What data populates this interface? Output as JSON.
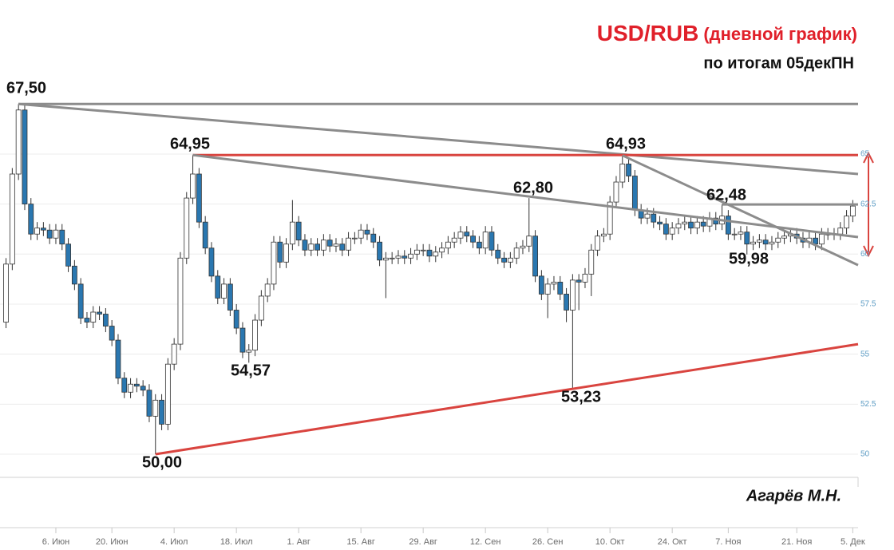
{
  "chart_data": {
    "type": "candlestick",
    "title": "USD/RUB",
    "title_note": "(дневной график)",
    "subtitle": "по итогам 05декПН",
    "author": "Агарёв М.Н.",
    "up_color": "#ffffff",
    "down_color": "#2a77b0",
    "xlim": [
      -8.97,
      128.85
    ],
    "ylim": [
      48.843,
      72.696
    ],
    "yticks": [
      50,
      52.5,
      55,
      57.5,
      60,
      62.5,
      65
    ],
    "xticks": [
      {
        "value": 0,
        "label": "6. Июн"
      },
      {
        "value": 9,
        "label": "20. Июн"
      },
      {
        "value": 19,
        "label": "4. Июл"
      },
      {
        "value": 29,
        "label": "18. Июл"
      },
      {
        "value": 39,
        "label": "1. Авг"
      },
      {
        "value": 49,
        "label": "15. Авг"
      },
      {
        "value": 59,
        "label": "29. Авг"
      },
      {
        "value": 69,
        "label": "12. Сен"
      },
      {
        "value": 79,
        "label": "26. Сен"
      },
      {
        "value": 89,
        "label": "10. Окт"
      },
      {
        "value": 99,
        "label": "24. Окт"
      },
      {
        "value": 108,
        "label": "7. Ноя"
      },
      {
        "value": 119,
        "label": "21. Ноя"
      },
      {
        "value": 128,
        "label": "5. Дек"
      }
    ],
    "grid": true,
    "x": [
      -8,
      -7,
      -6,
      -5,
      -4,
      -3,
      -2,
      -1,
      0,
      1,
      2,
      3,
      4,
      5,
      6,
      7,
      8,
      9,
      10,
      11,
      12,
      13,
      14,
      15,
      16,
      17,
      18,
      19,
      20,
      21,
      22,
      23,
      24,
      25,
      26,
      27,
      28,
      29,
      30,
      31,
      32,
      33,
      34,
      35,
      36,
      37,
      38,
      39,
      40,
      41,
      42,
      43,
      44,
      45,
      46,
      47,
      48,
      49,
      50,
      51,
      52,
      53,
      54,
      55,
      56,
      57,
      58,
      59,
      60,
      61,
      62,
      63,
      64,
      65,
      66,
      67,
      68,
      69,
      70,
      71,
      72,
      73,
      74,
      75,
      76,
      77,
      78,
      79,
      80,
      81,
      82,
      83,
      84,
      85,
      86,
      87,
      88,
      89,
      90,
      91,
      92,
      93,
      94,
      95,
      96,
      97,
      98,
      99,
      100,
      101,
      102,
      103,
      104,
      105,
      106,
      107,
      108,
      109,
      110,
      111,
      112,
      113,
      114,
      115,
      116,
      117,
      118,
      119,
      120,
      121,
      122,
      123,
      124,
      125,
      126,
      127,
      128
    ],
    "open": [
      56.6,
      59.5,
      64.0,
      67.2,
      62.5,
      61.0,
      61.3,
      61.2,
      60.8,
      61.2,
      60.5,
      59.4,
      58.5,
      56.8,
      56.6,
      57.1,
      57.0,
      56.4,
      55.7,
      53.8,
      53.1,
      53.5,
      53.4,
      53.2,
      51.9,
      52.7,
      51.5,
      54.5,
      55.5,
      59.8,
      62.8,
      64.0,
      61.6,
      60.3,
      58.9,
      57.8,
      58.5,
      57.2,
      56.3,
      55.1,
      55.2,
      56.7,
      57.9,
      58.5,
      60.6,
      59.6,
      60.5,
      61.6,
      60.7,
      60.2,
      60.5,
      60.2,
      60.7,
      60.4,
      60.5,
      60.2,
      60.8,
      60.8,
      61.2,
      61.0,
      60.6,
      59.7,
      59.8,
      59.8,
      59.9,
      59.8,
      60.0,
      60.2,
      60.2,
      59.9,
      60.1,
      60.3,
      60.6,
      60.8,
      61.1,
      60.9,
      60.6,
      60.3,
      61.1,
      60.2,
      59.8,
      59.6,
      59.8,
      60.3,
      60.4,
      60.9,
      58.9,
      58.0,
      58.5,
      58.6,
      58.0,
      57.2,
      58.7,
      58.6,
      59.0,
      60.2,
      60.9,
      61.0,
      62.6,
      63.6,
      64.5,
      63.9,
      62.2,
      61.8,
      62.0,
      61.6,
      61.5,
      61.0,
      61.3,
      61.5,
      61.6,
      61.3,
      61.6,
      61.4,
      61.8,
      61.5,
      61.9,
      61.0,
      61.0,
      61.1,
      60.5,
      60.6,
      60.7,
      60.5,
      60.6,
      60.8,
      60.9,
      61.0,
      60.8,
      60.6,
      60.8,
      60.5,
      61.0,
      61.0,
      61.0,
      61.3,
      61.9
    ],
    "high": [
      59.8,
      64.3,
      67.5,
      67.5,
      62.8,
      61.6,
      61.6,
      61.5,
      61.5,
      61.5,
      60.8,
      59.7,
      58.8,
      57.1,
      57.4,
      57.4,
      57.3,
      56.7,
      56.0,
      54.1,
      53.8,
      53.8,
      53.7,
      53.5,
      53.0,
      53.0,
      54.8,
      55.8,
      60.1,
      63.1,
      64.95,
      64.3,
      61.9,
      60.6,
      59.2,
      58.8,
      58.8,
      57.5,
      56.6,
      55.5,
      57.0,
      58.2,
      58.8,
      60.9,
      60.9,
      60.8,
      62.7,
      61.9,
      61.0,
      60.8,
      60.8,
      61.0,
      61.0,
      60.8,
      60.8,
      61.1,
      61.1,
      61.5,
      61.5,
      61.3,
      60.9,
      60.1,
      60.1,
      60.2,
      60.2,
      60.3,
      60.5,
      60.5,
      60.5,
      60.4,
      60.6,
      60.9,
      61.1,
      61.4,
      61.4,
      61.2,
      60.9,
      61.4,
      61.4,
      60.5,
      60.1,
      60.1,
      60.6,
      60.7,
      62.8,
      61.2,
      59.2,
      58.8,
      58.9,
      58.9,
      58.3,
      59.0,
      59.0,
      59.3,
      60.5,
      61.2,
      61.3,
      62.9,
      63.9,
      64.93,
      64.8,
      64.2,
      62.5,
      62.3,
      62.3,
      61.9,
      61.8,
      61.6,
      61.8,
      61.9,
      61.9,
      61.9,
      61.9,
      62.1,
      62.1,
      62.48,
      62.2,
      61.3,
      61.4,
      61.4,
      60.9,
      61.0,
      61.0,
      60.9,
      61.1,
      61.2,
      61.3,
      61.3,
      61.1,
      61.1,
      61.1,
      61.3,
      61.3,
      61.3,
      61.6,
      62.2,
      62.7
    ],
    "low": [
      56.3,
      59.2,
      63.7,
      62.2,
      60.7,
      60.7,
      60.9,
      60.5,
      60.5,
      60.2,
      59.1,
      58.2,
      56.5,
      56.3,
      56.3,
      56.7,
      56.1,
      55.4,
      53.5,
      52.8,
      52.8,
      53.1,
      52.9,
      51.6,
      50.0,
      51.2,
      51.2,
      54.2,
      55.2,
      59.5,
      62.5,
      61.3,
      60.0,
      58.6,
      57.5,
      57.5,
      56.9,
      56.0,
      54.8,
      54.57,
      54.9,
      56.4,
      57.6,
      58.2,
      59.3,
      59.3,
      60.2,
      60.4,
      59.9,
      59.9,
      59.9,
      59.9,
      60.1,
      60.1,
      59.9,
      59.9,
      60.5,
      60.5,
      60.7,
      60.3,
      59.4,
      57.8,
      59.5,
      59.5,
      59.5,
      59.5,
      59.7,
      59.9,
      59.6,
      59.6,
      59.8,
      60.0,
      60.3,
      60.5,
      60.6,
      60.3,
      60.0,
      60.0,
      59.9,
      59.5,
      59.3,
      59.3,
      59.5,
      60.0,
      60.1,
      58.6,
      57.7,
      56.8,
      58.2,
      57.7,
      56.6,
      53.23,
      57.2,
      58.3,
      57.9,
      59.9,
      60.6,
      60.7,
      62.3,
      63.3,
      63.6,
      61.9,
      61.5,
      61.5,
      61.3,
      61.2,
      60.7,
      60.7,
      61.0,
      61.2,
      61.0,
      61.0,
      61.1,
      61.1,
      61.2,
      61.2,
      60.7,
      60.7,
      60.7,
      59.98,
      60.2,
      60.3,
      60.2,
      60.2,
      60.3,
      60.5,
      60.6,
      60.5,
      60.3,
      60.3,
      60.2,
      60.2,
      60.7,
      60.7,
      60.7,
      61.0,
      61.6
    ],
    "close": [
      59.5,
      64.0,
      67.2,
      62.5,
      61.0,
      61.3,
      61.2,
      60.8,
      61.2,
      60.5,
      59.4,
      58.5,
      56.8,
      56.6,
      57.1,
      57.0,
      56.4,
      55.7,
      53.8,
      53.1,
      53.5,
      53.4,
      53.2,
      51.9,
      52.7,
      51.5,
      54.5,
      55.5,
      59.8,
      62.8,
      64.0,
      61.6,
      60.3,
      58.9,
      57.8,
      58.5,
      57.2,
      56.3,
      55.1,
      55.2,
      56.7,
      57.9,
      58.5,
      60.6,
      59.6,
      60.5,
      61.6,
      60.7,
      60.2,
      60.5,
      60.2,
      60.7,
      60.4,
      60.5,
      60.2,
      60.8,
      60.8,
      61.2,
      61.0,
      60.6,
      59.7,
      59.8,
      59.8,
      59.9,
      59.8,
      60.0,
      60.2,
      60.2,
      59.9,
      60.1,
      60.3,
      60.6,
      60.8,
      61.1,
      60.9,
      60.6,
      60.3,
      61.1,
      60.2,
      59.8,
      59.6,
      59.8,
      60.3,
      60.4,
      60.9,
      58.9,
      58.0,
      58.5,
      58.6,
      58.0,
      57.2,
      58.7,
      58.6,
      59.0,
      60.2,
      60.9,
      61.0,
      62.6,
      63.6,
      64.5,
      63.9,
      62.2,
      61.8,
      62.0,
      61.6,
      61.5,
      61.0,
      61.3,
      61.5,
      61.6,
      61.3,
      61.6,
      61.4,
      61.8,
      61.5,
      61.9,
      61.0,
      61.0,
      61.1,
      60.5,
      60.6,
      60.7,
      60.5,
      60.6,
      60.8,
      60.9,
      61.0,
      60.8,
      60.6,
      60.8,
      60.5,
      61.0,
      61.0,
      61.0,
      61.3,
      61.9,
      62.4
    ],
    "lines": [
      {
        "x": [
          -6,
          128.85
        ],
        "y": [
          67.5,
          67.5
        ],
        "color": "#8c8c8c"
      },
      {
        "x": [
          -6,
          128.85
        ],
        "y": [
          67.5,
          64.0
        ],
        "color": "#8c8c8c"
      },
      {
        "x": [
          22,
          128.85
        ],
        "y": [
          64.95,
          64.95
        ],
        "color": "#d9443f"
      },
      {
        "x": [
          22,
          128.85
        ],
        "y": [
          64.95,
          60.85
        ],
        "color": "#8c8c8c"
      },
      {
        "x": [
          91,
          128.85
        ],
        "y": [
          64.93,
          59.45
        ],
        "color": "#8c8c8c"
      },
      {
        "x": [
          107,
          128.85
        ],
        "y": [
          62.48,
          62.48
        ],
        "color": "#8c8c8c"
      },
      {
        "x": [
          16,
          128.85
        ],
        "y": [
          50.0,
          55.5
        ],
        "color": "#d9443f"
      }
    ],
    "annotations": [
      "67,50",
      "64,95",
      "54,57",
      "50,00",
      "62,80",
      "53,23",
      "64,93",
      "62,48",
      "59,98"
    ]
  }
}
